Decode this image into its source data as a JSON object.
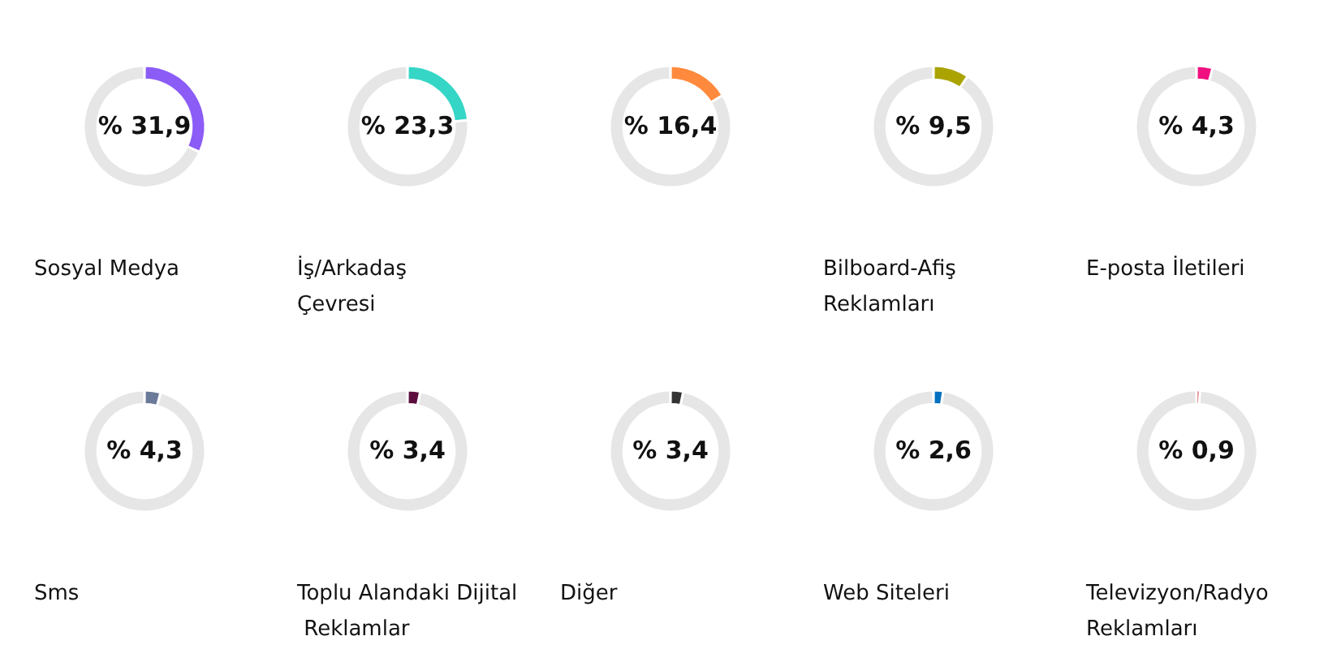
{
  "chart_data": [
    {
      "type": "donut",
      "title": "Sosyal Medya",
      "categories": [
        null,
        null
      ],
      "values": [
        31.9,
        68.1
      ],
      "colors": [
        "#8b5cf6",
        "#e6e6e6"
      ],
      "annotations": [
        "% 31,9"
      ]
    },
    {
      "type": "donut",
      "title": "İş/Arkadaş Çevresi",
      "categories": [
        null,
        null
      ],
      "values": [
        23.3,
        76.7
      ],
      "colors": [
        "#35d6c6",
        "#e6e6e6"
      ],
      "annotations": [
        "% 23,3"
      ]
    },
    {
      "type": "donut",
      "categories": [
        null,
        null
      ],
      "values": [
        16.4,
        83.6
      ],
      "colors": [
        "#ff8a3d",
        "#e6e6e6"
      ],
      "annotations": [
        "% 16,4"
      ]
    },
    {
      "type": "donut",
      "title": "Bilboard-Afiş Reklamları",
      "categories": [
        null,
        null
      ],
      "values": [
        9.5,
        90.5
      ],
      "colors": [
        "#aaa300",
        "#e6e6e6"
      ],
      "annotations": [
        "% 9,5"
      ]
    },
    {
      "type": "donut",
      "title": "E-posta İletileri",
      "categories": [
        null,
        null
      ],
      "values": [
        4.3,
        95.7
      ],
      "colors": [
        "#f0107f",
        "#e6e6e6"
      ],
      "annotations": [
        "% 4,3"
      ]
    },
    {
      "type": "donut",
      "title": "Sms",
      "categories": [
        null,
        null
      ],
      "values": [
        4.3,
        95.7
      ],
      "colors": [
        "#6b7a99",
        "#e6e6e6"
      ],
      "annotations": [
        "% 4,3"
      ]
    },
    {
      "type": "donut",
      "title": "Toplu Alandaki Dijital Reklamlar",
      "categories": [
        null,
        null
      ],
      "values": [
        3.4,
        96.6
      ],
      "colors": [
        "#5c0f3f",
        "#e6e6e6"
      ],
      "annotations": [
        "% 3,4"
      ]
    },
    {
      "type": "donut",
      "title": "Diğer",
      "categories": [
        null,
        null
      ],
      "values": [
        3.4,
        96.6
      ],
      "colors": [
        "#333333",
        "#e6e6e6"
      ],
      "annotations": [
        "% 3,4"
      ]
    },
    {
      "type": "donut",
      "title": "Web Siteleri",
      "categories": [
        null,
        null
      ],
      "values": [
        2.6,
        97.4
      ],
      "colors": [
        "#0070c0",
        "#e6e6e6"
      ],
      "annotations": [
        "% 2,6"
      ]
    },
    {
      "type": "donut",
      "title": "Televizyon/Radyo Reklamları",
      "categories": [
        null,
        null
      ],
      "values": [
        0.9,
        99.1
      ],
      "colors": [
        "#c00000",
        "#e6e6e6"
      ],
      "annotations": [
        "% 0,9"
      ]
    }
  ]
}
